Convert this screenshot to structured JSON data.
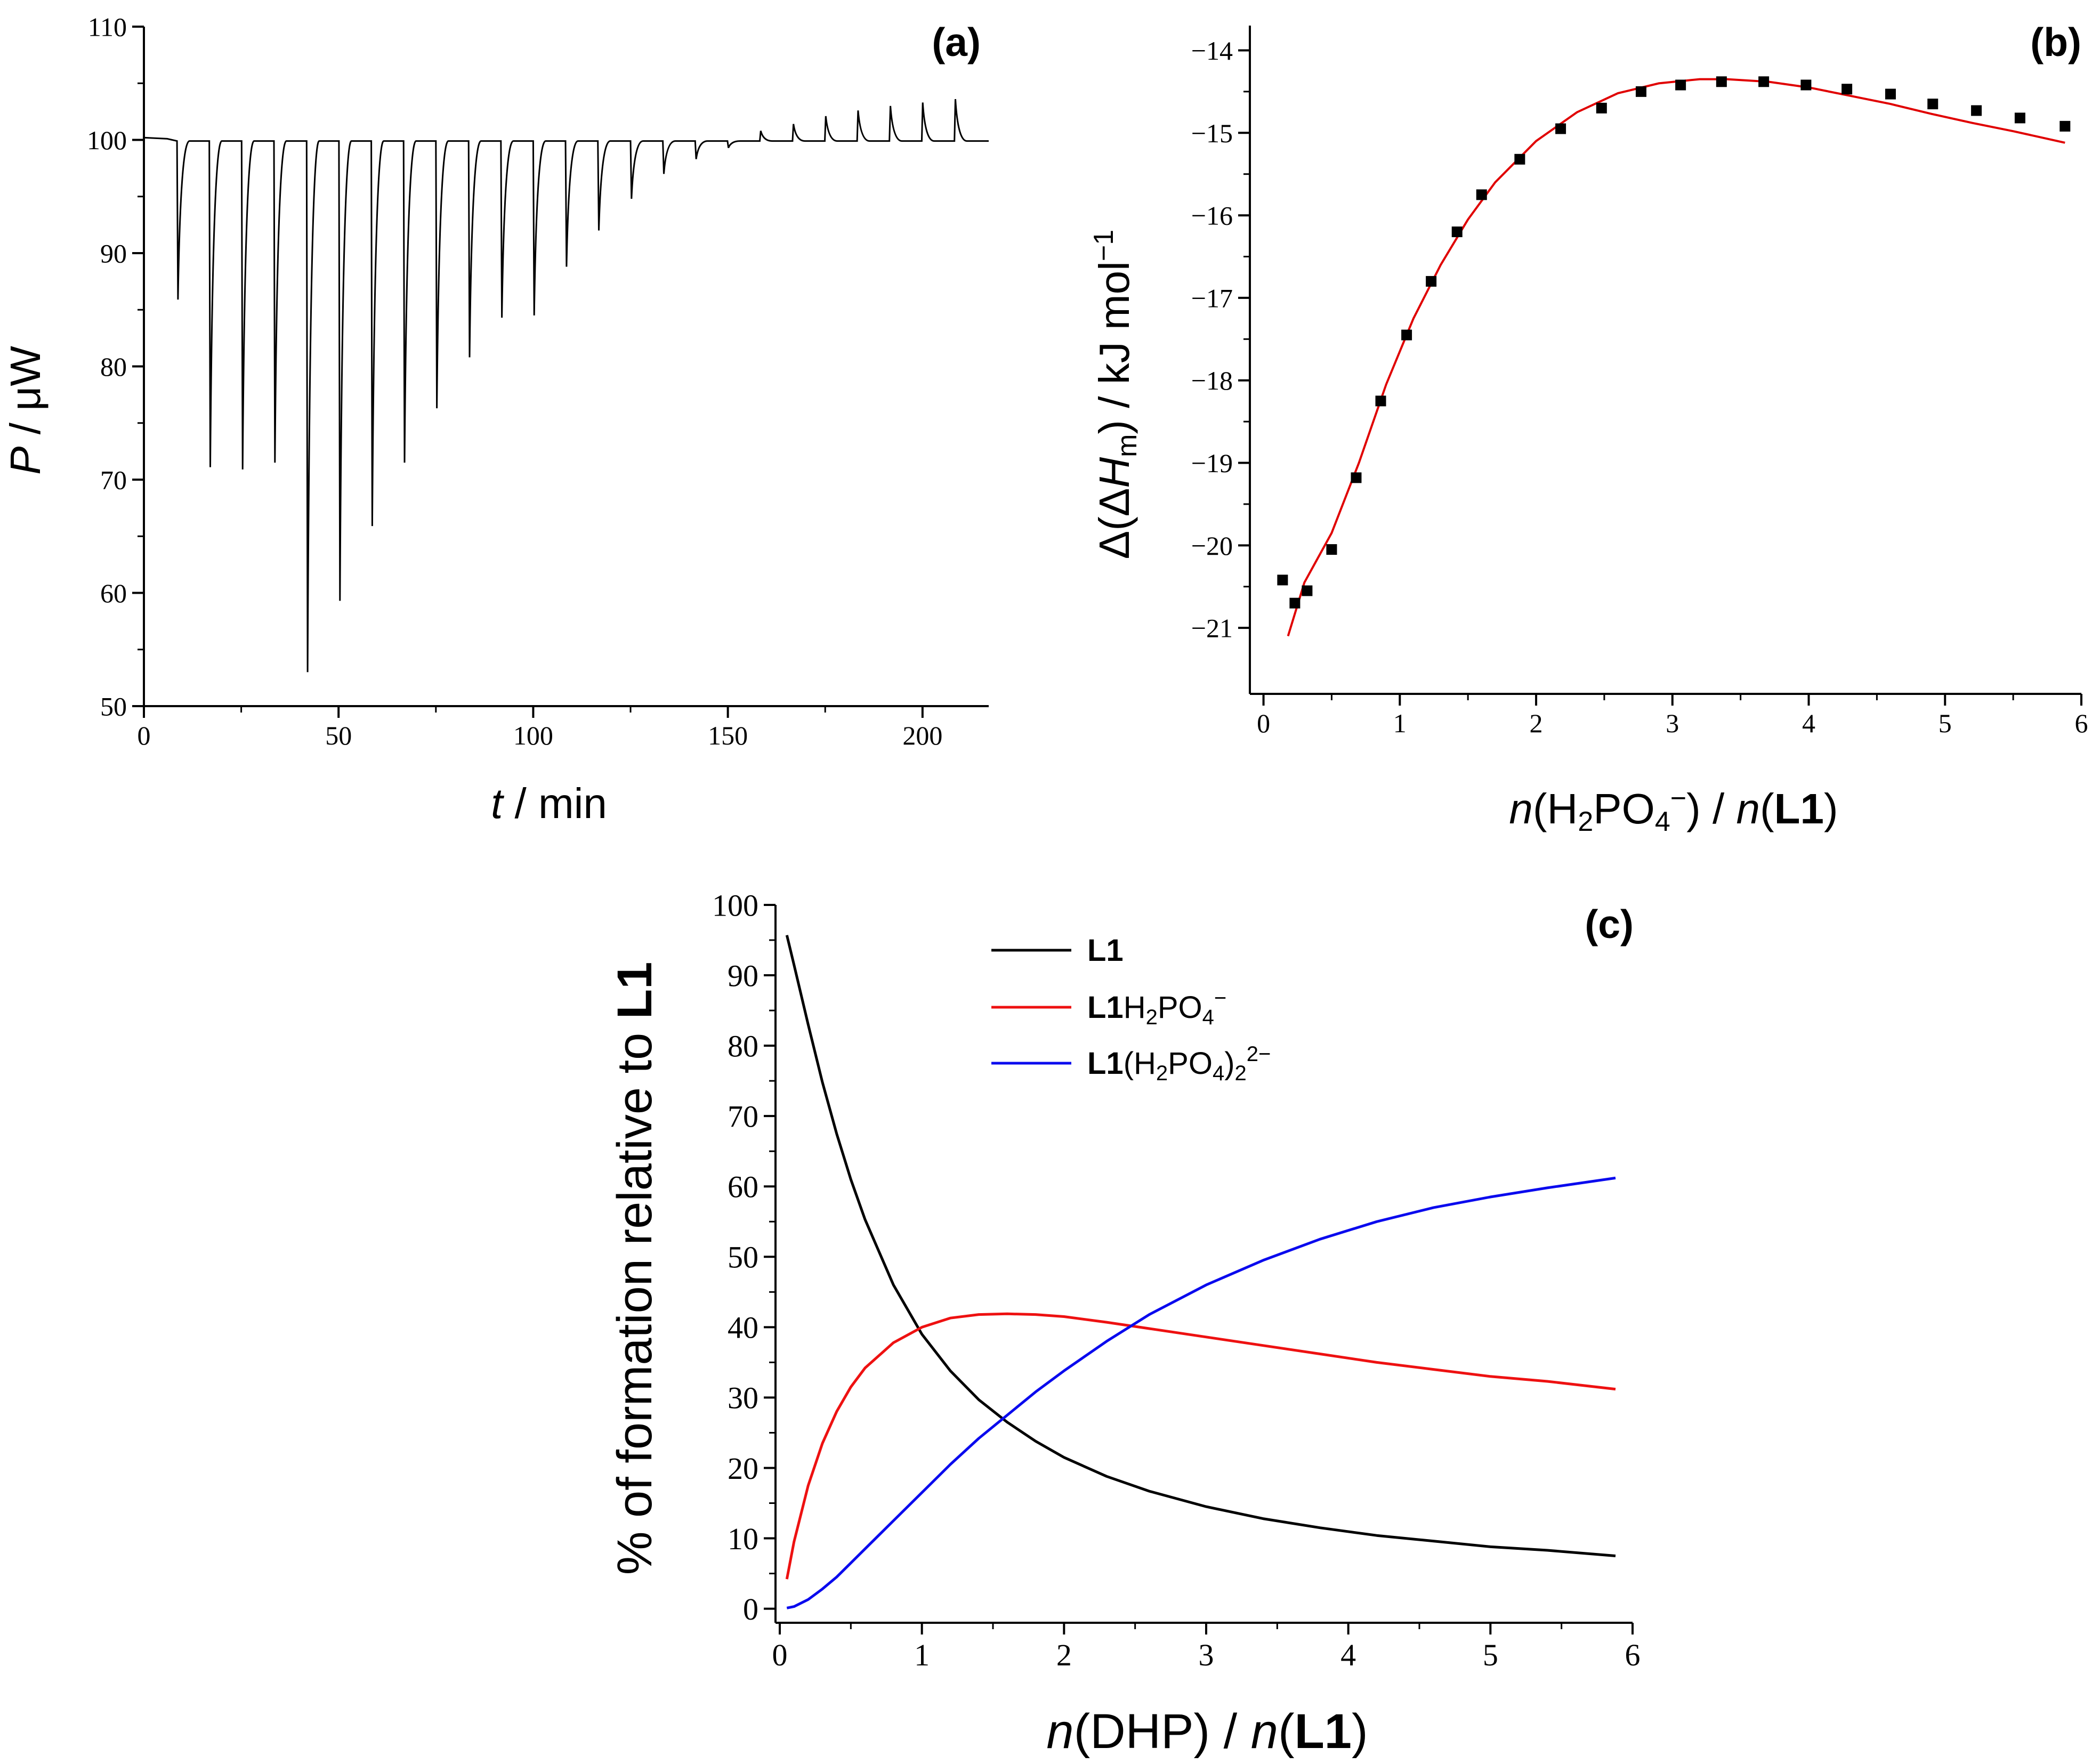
{
  "chart_data": [
    {
      "panel_label": "(a)",
      "type": "line",
      "xlabel": {
        "italic": "t",
        "rest": " / min"
      },
      "ylabel": {
        "italic": "P",
        "rest": " / μW"
      },
      "xlim": [
        0,
        217
      ],
      "ylim": [
        50,
        110
      ],
      "xticks": [
        0,
        50,
        100,
        150,
        200
      ],
      "yticks": [
        50,
        60,
        70,
        80,
        90,
        100,
        110
      ],
      "baseline": 99.9,
      "injection_times": [
        8.5,
        16.8,
        25.1,
        33.4,
        41.8,
        50.1,
        58.4,
        66.7,
        75.0,
        83.4,
        91.7,
        100.0,
        108.3,
        116.6,
        125.0,
        133.3,
        141.6,
        149.9,
        158.2,
        166.6,
        174.9,
        183.2,
        191.5,
        199.8,
        208.2
      ],
      "peak_values": [
        85.9,
        71.1,
        70.9,
        71.5,
        53.0,
        59.3,
        65.9,
        71.5,
        76.3,
        80.8,
        84.3,
        84.5,
        88.8,
        92.0,
        94.8,
        97.0,
        98.3,
        99.3,
        100.8,
        101.4,
        102.1,
        102.6,
        103.0,
        103.3,
        103.6
      ],
      "grid": false
    },
    {
      "panel_label": "(b)",
      "type": "scatter",
      "xlabel": "n(H2PO4−) / n(L1)",
      "ylabel": "Δ(ΔHm) / kJ mol−1",
      "xlim": [
        -0.1,
        6.0
      ],
      "ylim": [
        -21.8,
        -13.7
      ],
      "xticks": [
        0,
        1,
        2,
        3,
        4,
        5,
        6
      ],
      "yticks": [
        -14,
        -15,
        -16,
        -17,
        -18,
        -19,
        -20,
        -21
      ],
      "series": [
        {
          "kind": "points",
          "color": "#000000",
          "x": [
            0.14,
            0.23,
            0.32,
            0.5,
            0.68,
            0.86,
            1.05,
            1.23,
            1.42,
            1.6,
            1.88,
            2.18,
            2.48,
            2.77,
            3.06,
            3.36,
            3.67,
            3.98,
            4.28,
            4.6,
            4.91,
            5.23,
            5.55,
            5.88
          ],
          "y": [
            -20.42,
            -20.7,
            -20.55,
            -20.05,
            -19.18,
            -18.25,
            -17.45,
            -16.8,
            -16.2,
            -15.75,
            -15.32,
            -14.95,
            -14.7,
            -14.5,
            -14.42,
            -14.38,
            -14.38,
            -14.42,
            -14.47,
            -14.53,
            -14.65,
            -14.73,
            -14.82,
            -14.92
          ]
        },
        {
          "kind": "fit",
          "color": "#e00000",
          "x": [
            0.18,
            0.3,
            0.5,
            0.7,
            0.9,
            1.1,
            1.3,
            1.5,
            1.7,
            2.0,
            2.3,
            2.6,
            2.9,
            3.2,
            3.4,
            3.7,
            4.0,
            4.3,
            4.6,
            4.9,
            5.2,
            5.5,
            5.88
          ],
          "y": [
            -21.1,
            -20.45,
            -19.85,
            -19.0,
            -18.05,
            -17.25,
            -16.6,
            -16.05,
            -15.6,
            -15.1,
            -14.75,
            -14.52,
            -14.4,
            -14.35,
            -14.35,
            -14.38,
            -14.45,
            -14.55,
            -14.65,
            -14.77,
            -14.88,
            -14.98,
            -15.12
          ]
        }
      ],
      "grid": false
    },
    {
      "panel_label": "(c)",
      "type": "line",
      "xlabel": "n(DHP) / n(L1)",
      "ylabel": "% of formation relative to L1",
      "xlim": [
        -0.03,
        6.0
      ],
      "ylim": [
        -2,
        100
      ],
      "xticks": [
        0,
        1,
        2,
        3,
        4,
        5,
        6
      ],
      "yticks": [
        0,
        10,
        20,
        30,
        40,
        50,
        60,
        70,
        80,
        90,
        100
      ],
      "legend_position": "top-center",
      "series": [
        {
          "name": "L1",
          "color": "#000000",
          "x": [
            0.05,
            0.1,
            0.2,
            0.3,
            0.4,
            0.5,
            0.6,
            0.8,
            1.0,
            1.2,
            1.4,
            1.6,
            1.8,
            2.0,
            2.3,
            2.6,
            3.0,
            3.4,
            3.8,
            4.2,
            4.6,
            5.0,
            5.4,
            5.88
          ],
          "y": [
            95.7,
            91.5,
            83.0,
            74.8,
            67.5,
            61.0,
            55.3,
            46.0,
            39.0,
            33.8,
            29.7,
            26.5,
            23.8,
            21.5,
            18.8,
            16.7,
            14.5,
            12.8,
            11.5,
            10.4,
            9.6,
            8.8,
            8.3,
            7.5
          ]
        },
        {
          "name": "L1H2PO4−",
          "color": "#ee1111",
          "x": [
            0.05,
            0.1,
            0.2,
            0.3,
            0.4,
            0.5,
            0.6,
            0.8,
            1.0,
            1.2,
            1.4,
            1.6,
            1.8,
            2.0,
            2.3,
            2.6,
            3.0,
            3.4,
            3.8,
            4.2,
            4.6,
            5.0,
            5.4,
            5.88
          ],
          "y": [
            4.2,
            9.5,
            17.5,
            23.5,
            28.0,
            31.5,
            34.2,
            37.8,
            40.0,
            41.3,
            41.8,
            41.9,
            41.8,
            41.5,
            40.7,
            39.8,
            38.6,
            37.4,
            36.2,
            35.0,
            34.0,
            33.0,
            32.3,
            31.2
          ]
        },
        {
          "name": "L1(H2PO4)22−",
          "color": "#0a0aee",
          "x": [
            0.05,
            0.1,
            0.2,
            0.3,
            0.4,
            0.5,
            0.6,
            0.8,
            1.0,
            1.2,
            1.4,
            1.6,
            1.8,
            2.0,
            2.3,
            2.6,
            3.0,
            3.4,
            3.8,
            4.2,
            4.6,
            5.0,
            5.4,
            5.88
          ],
          "y": [
            0.1,
            0.3,
            1.3,
            2.8,
            4.5,
            6.5,
            8.5,
            12.5,
            16.5,
            20.5,
            24.2,
            27.5,
            30.8,
            33.8,
            38.0,
            41.8,
            46.0,
            49.5,
            52.5,
            55.0,
            57.0,
            58.5,
            59.8,
            61.2
          ]
        }
      ],
      "grid": false
    }
  ]
}
